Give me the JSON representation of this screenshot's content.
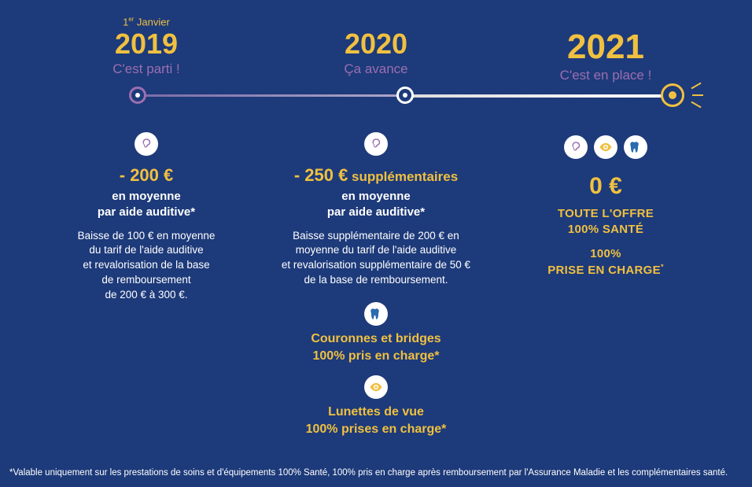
{
  "colors": {
    "bg": "#1d3a7a",
    "purple": "#9b6fb0",
    "gold": "#f0c040",
    "blue": "#2a6bb0",
    "white": "#ffffff"
  },
  "timeline": {
    "node1": {
      "border": "#9b6fb0",
      "dot": "#ffffff"
    },
    "node2": {
      "border": "#ffffff",
      "dot": "#ffffff"
    },
    "node3": {
      "border": "#f0c040",
      "dot": "#f0c040"
    }
  },
  "col1": {
    "pretitle_html": "1<sup>er</sup> Janvier",
    "pretitle_color": "#f0c040",
    "year": "2019",
    "year_color": "#f0c040",
    "subtitle": "C'est parti !",
    "subtitle_color": "#9b6fb0",
    "icons": [
      {
        "type": "ear",
        "color": "#9b6fb0"
      }
    ],
    "headline": "- 200 €",
    "headline_color": "#f0c040",
    "sub_bold_html": "en moyenne<br>par aide auditive*",
    "desc_html": "Baisse de 100 € en moyenne<br>du tarif de l'aide auditive<br>et revalorisation de la base<br>de remboursement<br>de 200 € à 300 €."
  },
  "col2": {
    "year": "2020",
    "year_color": "#f0c040",
    "subtitle": "Ça avance",
    "subtitle_color": "#9b6fb0",
    "icons1": [
      {
        "type": "ear",
        "color": "#9b6fb0"
      }
    ],
    "headline": "- 250 €",
    "headline_suffix": " supplémentaires",
    "headline_color": "#f0c040",
    "sub_bold_html": "en moyenne<br>par aide auditive*",
    "desc_html": "Baisse supplémentaire de 200 € en<br>moyenne du tarif de l'aide auditive<br>et revalorisation supplémentaire de 50 €<br>de la base de remboursement.",
    "section2_icon": {
      "type": "tooth",
      "color": "#2a6bb0"
    },
    "section2_text_html": "Couronnes et bridges<br>100% pris en charge*",
    "section2_color": "#f0c040",
    "section3_icon": {
      "type": "eye",
      "color": "#f0c040"
    },
    "section3_text_html": "Lunettes de vue<br>100% prises en charge*",
    "section3_color": "#f0c040"
  },
  "col3": {
    "year": "2021",
    "year_color": "#f0c040",
    "subtitle": "C'est en place !",
    "subtitle_color": "#9b6fb0",
    "icons": [
      {
        "type": "ear",
        "color": "#9b6fb0"
      },
      {
        "type": "eye",
        "color": "#f0c040"
      },
      {
        "type": "tooth",
        "color": "#2a6bb0"
      }
    ],
    "amount": "0 €",
    "amount_color": "#f0c040",
    "line1_html": "TOUTE L'OFFRE<br>100% SANTÉ",
    "line1_color": "#f0c040",
    "line2_html": "100%<br>PRISE EN CHARGE<sup>*</sup>",
    "line2_color": "#f0c040"
  },
  "footnote": "*Valable uniquement sur les prestations de soins et d'équipements 100% Santé, 100% pris en charge après remboursement par l'Assurance Maladie et les complémentaires santé."
}
